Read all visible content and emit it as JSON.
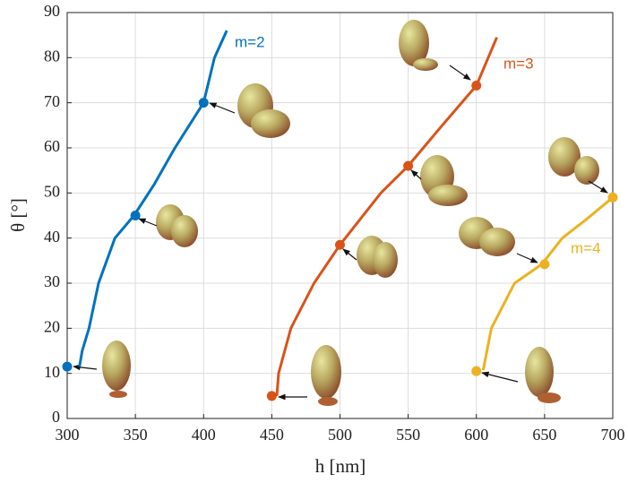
{
  "chart_data": {
    "type": "line",
    "x_label": "h [nm]",
    "y_label": "θ [°]",
    "xlim": [
      300,
      700
    ],
    "xticks": [
      300,
      350,
      400,
      450,
      500,
      550,
      600,
      650,
      700
    ],
    "ylim": [
      0,
      90
    ],
    "yticks": [
      0,
      10,
      20,
      30,
      40,
      50,
      60,
      70,
      80,
      90
    ],
    "grid": true,
    "series": [
      {
        "name": "m=2",
        "color": "#0072bd",
        "x": [
          309,
          311,
          316,
          323,
          335,
          349,
          364,
          379,
          400,
          408,
          417
        ],
        "values": [
          11.5,
          15,
          20,
          30,
          40,
          45,
          52,
          60,
          70,
          80,
          86
        ],
        "points": {
          "x": [
            300,
            350,
            400
          ],
          "values": [
            11.5,
            45,
            70
          ]
        }
      },
      {
        "name": "m=3",
        "color": "#d95319",
        "x": [
          453.7,
          455,
          464,
          481,
          500,
          530,
          550,
          575,
          600,
          615
        ],
        "values": [
          5,
          10,
          20,
          30,
          38.5,
          50,
          56,
          65,
          73.8,
          84.5
        ],
        "points": {
          "x": [
            450,
            500,
            550,
            600
          ],
          "values": [
            5,
            38.5,
            56,
            73.8
          ]
        }
      },
      {
        "name": "m=4",
        "color": "#edb120",
        "x": [
          605,
          611,
          628,
          648,
          663,
          680,
          700
        ],
        "values": [
          10.7,
          20,
          30,
          34.2,
          40,
          44,
          49
        ],
        "points": {
          "x": [
            600,
            650,
            700
          ],
          "values": [
            10.5,
            34.2,
            49
          ]
        }
      }
    ]
  }
}
